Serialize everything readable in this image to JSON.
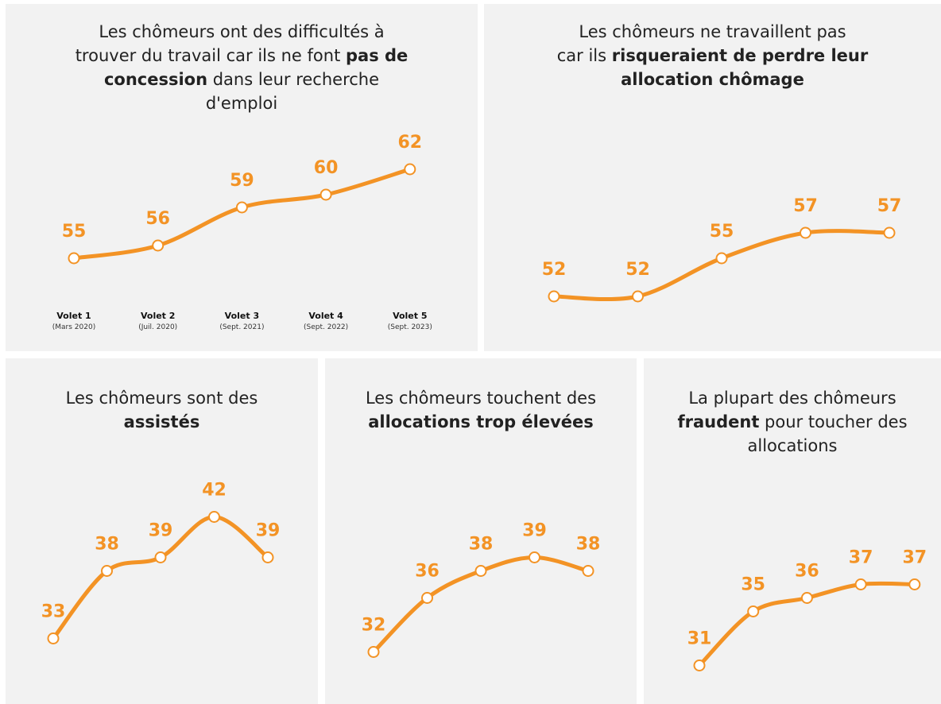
{
  "chart_data": [
    {
      "type": "line",
      "color": "#f39325",
      "title_lines": [
        [
          {
            "text": "Les chômeurs ont des difficultés à",
            "bold": false
          }
        ],
        [
          {
            "text": "trouver du travail car ils ne font ",
            "bold": false
          },
          {
            "text": "pas de",
            "bold": true
          }
        ],
        [
          {
            "text": "concession",
            "bold": true
          },
          {
            "text": " dans leur recherche",
            "bold": false
          }
        ],
        [
          {
            "text": "d'emploi",
            "bold": false
          }
        ]
      ],
      "categories": [
        "Volet 1",
        "Volet 2",
        "Volet 3",
        "Volet 4",
        "Volet 5"
      ],
      "category_dates": [
        "(Mars 2020)",
        "(Juil. 2020)",
        "(Sept. 2021)",
        "(Sept. 2022)",
        "(Sept. 2023)"
      ],
      "values": [
        55,
        56,
        59,
        60,
        62
      ]
    },
    {
      "type": "line",
      "color": "#f39325",
      "title_lines": [
        [
          {
            "text": "Les chômeurs ne travaillent pas",
            "bold": false
          }
        ],
        [
          {
            "text": "car ils ",
            "bold": false
          },
          {
            "text": "risqueraient de perdre leur",
            "bold": true
          }
        ],
        [
          {
            "text": "allocation chômage",
            "bold": true
          }
        ]
      ],
      "values": [
        52,
        52,
        55,
        57,
        57
      ]
    },
    {
      "type": "line",
      "color": "#f39325",
      "title_lines": [
        [
          {
            "text": "Les chômeurs sont des",
            "bold": false
          }
        ],
        [
          {
            "text": "assistés",
            "bold": true
          }
        ]
      ],
      "values": [
        33,
        38,
        39,
        42,
        39
      ]
    },
    {
      "type": "line",
      "color": "#f39325",
      "title_lines": [
        [
          {
            "text": "Les chômeurs touchent des",
            "bold": false
          }
        ],
        [
          {
            "text": "allocations trop élevées",
            "bold": true
          }
        ]
      ],
      "values": [
        32,
        36,
        38,
        39,
        38
      ]
    },
    {
      "type": "line",
      "color": "#f39325",
      "title_lines": [
        [
          {
            "text": "La plupart des chômeurs",
            "bold": false
          }
        ],
        [
          {
            "text": "fraudent",
            "bold": true
          },
          {
            "text": " pour toucher des",
            "bold": false
          }
        ],
        [
          {
            "text": "allocations",
            "bold": false
          }
        ]
      ],
      "values": [
        31,
        35,
        36,
        37,
        37
      ]
    }
  ]
}
